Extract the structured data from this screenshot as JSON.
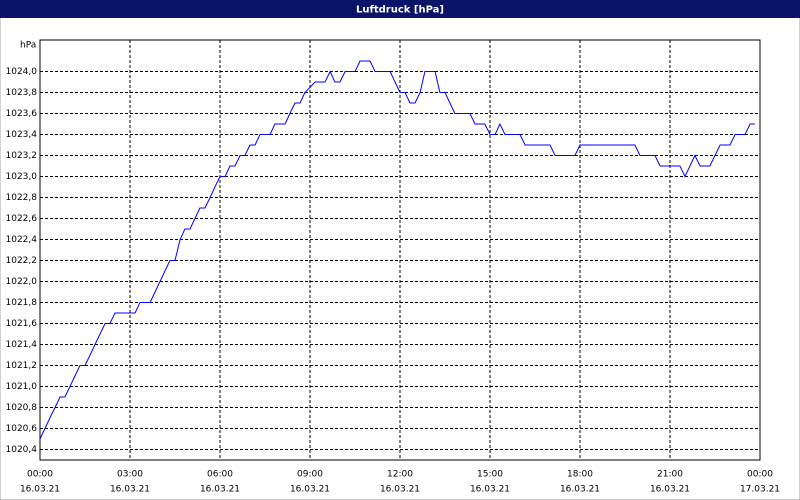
{
  "chart_data": {
    "type": "line",
    "title": "Luftdruck [hPa]",
    "y_label": "hPa",
    "x": [
      0,
      0.33,
      0.67,
      0.83,
      1,
      1.33,
      1.5,
      1.67,
      2,
      2.17,
      2.33,
      2.5,
      2.83,
      3.17,
      3.33,
      3.67,
      4,
      4.33,
      4.5,
      4.67,
      4.83,
      5,
      5.33,
      5.5,
      5.67,
      5.83,
      6,
      6.17,
      6.33,
      6.5,
      6.67,
      6.83,
      7,
      7.17,
      7.33,
      7.67,
      7.83,
      8.17,
      8.33,
      8.5,
      8.67,
      8.83,
      9.17,
      9.5,
      9.67,
      9.83,
      10,
      10.17,
      10.5,
      10.67,
      11,
      11.17,
      11.67,
      12,
      12.17,
      12.33,
      12.5,
      12.67,
      12.83,
      13.17,
      13.33,
      13.5,
      13.83,
      14.33,
      14.5,
      14.83,
      15,
      15.17,
      15.33,
      15.5,
      16,
      16.17,
      17,
      17.17,
      17.83,
      18,
      19.83,
      20,
      20.5,
      20.67,
      21.33,
      21.5,
      21.83,
      22,
      22.33,
      22.67,
      23,
      23.17,
      23.5,
      23.67,
      23.83
    ],
    "series": [
      {
        "name": "Luftdruck",
        "color": "#0000ff",
        "values": [
          1020.5,
          1020.7,
          1020.9,
          1020.9,
          1021.0,
          1021.2,
          1021.2,
          1021.3,
          1021.5,
          1021.6,
          1021.6,
          1021.7,
          1021.7,
          1021.7,
          1021.8,
          1021.8,
          1022.0,
          1022.2,
          1022.2,
          1022.4,
          1022.5,
          1022.5,
          1022.7,
          1022.7,
          1022.8,
          1022.9,
          1023.0,
          1023.0,
          1023.1,
          1023.1,
          1023.2,
          1023.2,
          1023.3,
          1023.3,
          1023.4,
          1023.4,
          1023.5,
          1023.5,
          1023.6,
          1023.7,
          1023.7,
          1023.8,
          1023.9,
          1023.9,
          1024.0,
          1023.9,
          1023.9,
          1024.0,
          1024.0,
          1024.1,
          1024.1,
          1024.0,
          1024.0,
          1023.8,
          1023.8,
          1023.7,
          1023.7,
          1023.8,
          1024.0,
          1024.0,
          1023.8,
          1023.8,
          1023.6,
          1023.6,
          1023.5,
          1023.5,
          1023.4,
          1023.4,
          1023.5,
          1023.4,
          1023.4,
          1023.3,
          1023.3,
          1023.2,
          1023.2,
          1023.3,
          1023.3,
          1023.2,
          1023.2,
          1023.1,
          1023.1,
          1023.0,
          1023.2,
          1023.1,
          1023.1,
          1023.3,
          1023.3,
          1023.4,
          1023.4,
          1023.5,
          1023.5
        ]
      }
    ],
    "xlim": [
      0,
      24
    ],
    "ylim": [
      1020.3,
      1024.3
    ],
    "xticks": [
      {
        "value": 0,
        "label": "00:00"
      },
      {
        "value": 3,
        "label": "03:00"
      },
      {
        "value": 6,
        "label": "06:00"
      },
      {
        "value": 9,
        "label": "09:00"
      },
      {
        "value": 12,
        "label": "12:00"
      },
      {
        "value": 15,
        "label": "15:00"
      },
      {
        "value": 18,
        "label": "18:00"
      },
      {
        "value": 21,
        "label": "21:00"
      },
      {
        "value": 24,
        "label": "00:00"
      }
    ],
    "xtick_dates": [
      "16.03.21",
      "16.03.21",
      "16.03.21",
      "16.03.21",
      "16.03.21",
      "16.03.21",
      "16.03.21",
      "16.03.21",
      "17.03.21"
    ],
    "yticks": [
      {
        "value": 1020.4,
        "label": "1020,4"
      },
      {
        "value": 1020.6,
        "label": "1020,6"
      },
      {
        "value": 1020.8,
        "label": "1020,8"
      },
      {
        "value": 1021.0,
        "label": "1021,0"
      },
      {
        "value": 1021.2,
        "label": "1021,2"
      },
      {
        "value": 1021.4,
        "label": "1021,4"
      },
      {
        "value": 1021.6,
        "label": "1021,6"
      },
      {
        "value": 1021.8,
        "label": "1021,8"
      },
      {
        "value": 1022.0,
        "label": "1022,0"
      },
      {
        "value": 1022.2,
        "label": "1022,2"
      },
      {
        "value": 1022.4,
        "label": "1022,4"
      },
      {
        "value": 1022.6,
        "label": "1022,6"
      },
      {
        "value": 1022.8,
        "label": "1022,8"
      },
      {
        "value": 1023.0,
        "label": "1023,0"
      },
      {
        "value": 1023.2,
        "label": "1023,2"
      },
      {
        "value": 1023.4,
        "label": "1023,4"
      },
      {
        "value": 1023.6,
        "label": "1023,6"
      },
      {
        "value": 1023.8,
        "label": "1023,8"
      },
      {
        "value": 1024.0,
        "label": "1024,0"
      }
    ],
    "grid": true
  }
}
